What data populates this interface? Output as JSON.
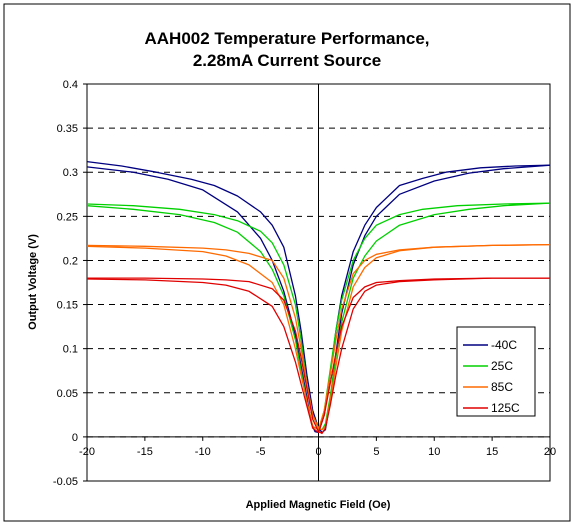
{
  "chart_data": {
    "type": "line",
    "title_line1": "AAH002 Temperature Performance,",
    "title_line2": "2.28mA Current Source",
    "xlabel": "Applied Magnetic Field (Oe)",
    "ylabel": "Output Voltage (V)",
    "xlim": [
      -20,
      20
    ],
    "ylim": [
      -0.05,
      0.4
    ],
    "xticks": [
      -20,
      -15,
      -10,
      -5,
      0,
      5,
      10,
      15,
      20
    ],
    "yticks": [
      -0.05,
      0,
      0.05,
      0.1,
      0.15,
      0.2,
      0.25,
      0.3,
      0.35,
      0.4
    ],
    "ytick_labels": [
      "-0.05",
      "0",
      "0.05",
      "0.1",
      "0.15",
      "0.2",
      "0.25",
      "0.3",
      "0.35",
      "0.4"
    ],
    "grid": "horizontal-dashed",
    "legend_position": "right-inside-lower",
    "series": [
      {
        "name": "-40C",
        "color": "#000080",
        "sweep_down": {
          "x": [
            -20,
            -17,
            -14,
            -11,
            -9,
            -7,
            -5,
            -4,
            -3,
            -2,
            -1.5,
            -1,
            -0.5,
            0,
            0.3,
            0.6,
            1.0,
            1.5,
            2,
            3,
            4,
            5,
            7,
            10,
            13,
            16,
            20
          ],
          "y": [
            0.312,
            0.307,
            0.3,
            0.292,
            0.285,
            0.273,
            0.255,
            0.24,
            0.215,
            0.16,
            0.12,
            0.07,
            0.03,
            0.01,
            0.005,
            0.008,
            0.04,
            0.095,
            0.14,
            0.195,
            0.228,
            0.25,
            0.275,
            0.29,
            0.299,
            0.304,
            0.308
          ]
        },
        "sweep_up": {
          "x": [
            -20,
            -16,
            -13,
            -10,
            -7,
            -5,
            -4,
            -3,
            -2,
            -1.5,
            -1,
            -0.6,
            -0.3,
            0,
            0.5,
            1.0,
            1.5,
            2,
            3,
            4,
            5,
            7,
            9,
            11,
            14,
            17,
            20
          ],
          "y": [
            0.306,
            0.3,
            0.292,
            0.28,
            0.255,
            0.225,
            0.2,
            0.165,
            0.115,
            0.08,
            0.045,
            0.015,
            0.006,
            0.005,
            0.025,
            0.07,
            0.12,
            0.16,
            0.21,
            0.24,
            0.26,
            0.285,
            0.293,
            0.3,
            0.305,
            0.307,
            0.308
          ]
        }
      },
      {
        "name": "25C",
        "color": "#00d000",
        "sweep_down": {
          "x": [
            -20,
            -16,
            -12,
            -9,
            -7,
            -5,
            -4,
            -3,
            -2,
            -1.5,
            -1,
            -0.5,
            0,
            0.3,
            0.6,
            1.0,
            1.5,
            2,
            3,
            4,
            5,
            7,
            10,
            13,
            16,
            20
          ],
          "y": [
            0.264,
            0.262,
            0.258,
            0.252,
            0.245,
            0.233,
            0.22,
            0.195,
            0.15,
            0.11,
            0.06,
            0.025,
            0.01,
            0.008,
            0.015,
            0.045,
            0.09,
            0.13,
            0.18,
            0.205,
            0.222,
            0.24,
            0.252,
            0.258,
            0.262,
            0.265
          ]
        },
        "sweep_up": {
          "x": [
            -20,
            -16,
            -12,
            -9,
            -7,
            -5,
            -4,
            -3,
            -2,
            -1.5,
            -1,
            -0.5,
            0,
            0.5,
            1.0,
            1.5,
            2,
            3,
            4,
            5,
            7,
            9,
            12,
            16,
            20
          ],
          "y": [
            0.262,
            0.258,
            0.252,
            0.243,
            0.232,
            0.21,
            0.19,
            0.16,
            0.11,
            0.075,
            0.04,
            0.012,
            0.008,
            0.03,
            0.075,
            0.12,
            0.155,
            0.2,
            0.225,
            0.24,
            0.252,
            0.258,
            0.262,
            0.264,
            0.265
          ]
        }
      },
      {
        "name": "85C",
        "color": "#ff6a00",
        "sweep_down": {
          "x": [
            -20,
            -15,
            -10,
            -8,
            -6,
            -4,
            -3,
            -2,
            -1.5,
            -1,
            -0.5,
            0,
            0.3,
            0.6,
            1.0,
            1.5,
            2,
            3,
            4,
            5,
            7,
            10,
            15,
            20
          ],
          "y": [
            0.217,
            0.216,
            0.214,
            0.212,
            0.208,
            0.2,
            0.18,
            0.135,
            0.1,
            0.06,
            0.025,
            0.01,
            0.008,
            0.012,
            0.04,
            0.08,
            0.12,
            0.17,
            0.192,
            0.203,
            0.211,
            0.215,
            0.217,
            0.218
          ]
        },
        "sweep_up": {
          "x": [
            -20,
            -15,
            -10,
            -8,
            -6,
            -4,
            -3,
            -2,
            -1.5,
            -1,
            -0.5,
            0,
            0.5,
            1.0,
            1.5,
            2,
            3,
            4,
            5,
            7,
            10,
            15,
            20
          ],
          "y": [
            0.216,
            0.214,
            0.21,
            0.205,
            0.195,
            0.175,
            0.15,
            0.1,
            0.07,
            0.04,
            0.012,
            0.008,
            0.03,
            0.07,
            0.11,
            0.145,
            0.185,
            0.2,
            0.207,
            0.212,
            0.215,
            0.217,
            0.218
          ]
        }
      },
      {
        "name": "125C",
        "color": "#e00000",
        "sweep_down": {
          "x": [
            -20,
            -15,
            -10,
            -8,
            -6,
            -4,
            -3,
            -2,
            -1.5,
            -1,
            -0.5,
            0,
            0.3,
            0.6,
            1.0,
            1.5,
            2,
            3,
            4,
            5,
            7,
            10,
            15,
            20
          ],
          "y": [
            0.18,
            0.18,
            0.179,
            0.178,
            0.176,
            0.168,
            0.155,
            0.12,
            0.09,
            0.055,
            0.02,
            0.006,
            0.004,
            0.01,
            0.035,
            0.07,
            0.1,
            0.145,
            0.165,
            0.172,
            0.176,
            0.178,
            0.18,
            0.18
          ]
        },
        "sweep_up": {
          "x": [
            -20,
            -15,
            -10,
            -8,
            -6,
            -4,
            -3,
            -2,
            -1.5,
            -1,
            -0.5,
            0,
            0.5,
            1.0,
            1.5,
            2,
            3,
            4,
            5,
            7,
            10,
            15,
            20
          ],
          "y": [
            0.179,
            0.178,
            0.175,
            0.172,
            0.165,
            0.148,
            0.125,
            0.085,
            0.06,
            0.035,
            0.01,
            0.005,
            0.025,
            0.06,
            0.095,
            0.125,
            0.158,
            0.17,
            0.175,
            0.177,
            0.179,
            0.18,
            0.18
          ]
        }
      }
    ]
  }
}
